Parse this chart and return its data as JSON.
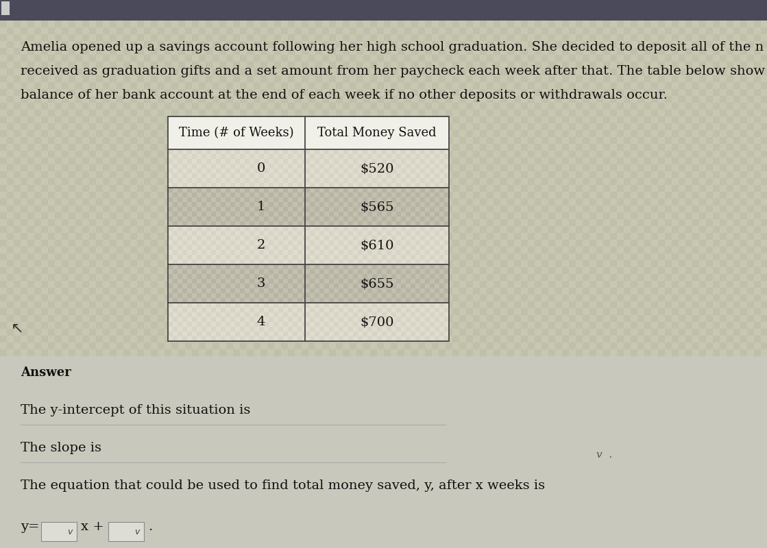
{
  "bg_color_top": "#4a4a5a",
  "bg_color_main": "#c0c0aa",
  "bg_color_answer": "#ccccc0",
  "text_color": "#111111",
  "paragraph_lines": [
    "Amelia opened up a savings account following her high school graduation. She decided to deposit all of the n",
    "received as graduation gifts and a set amount from her paycheck each week after that. The table below show",
    "balance of her bank account at the end of each week if no other deposits or withdrawals occur."
  ],
  "table_header": [
    "Time (# of Weeks)",
    "Total Money Saved"
  ],
  "table_rows": [
    [
      "0",
      "$520"
    ],
    [
      "1",
      "$565"
    ],
    [
      "2",
      "$610"
    ],
    [
      "3",
      "$655"
    ],
    [
      "4",
      "$700"
    ]
  ],
  "table_row_bg_light": "#d8d4c4",
  "table_row_bg_dark": "#b8b4a4",
  "table_header_bg": "#f0f0e8",
  "table_border_color": "#444444",
  "answer_label": "Answer",
  "line1": "The y-intercept of this situation is",
  "line2": "The slope is",
  "line3": "The equation that could be used to find total money saved, y, after x weeks is",
  "line4a": "y=",
  "line4b": "v  X +",
  "line4c": "v  .",
  "font_size_para": 14,
  "font_size_table_header": 13,
  "font_size_table_data": 14,
  "font_size_answer": 14,
  "font_size_answer_label": 13
}
